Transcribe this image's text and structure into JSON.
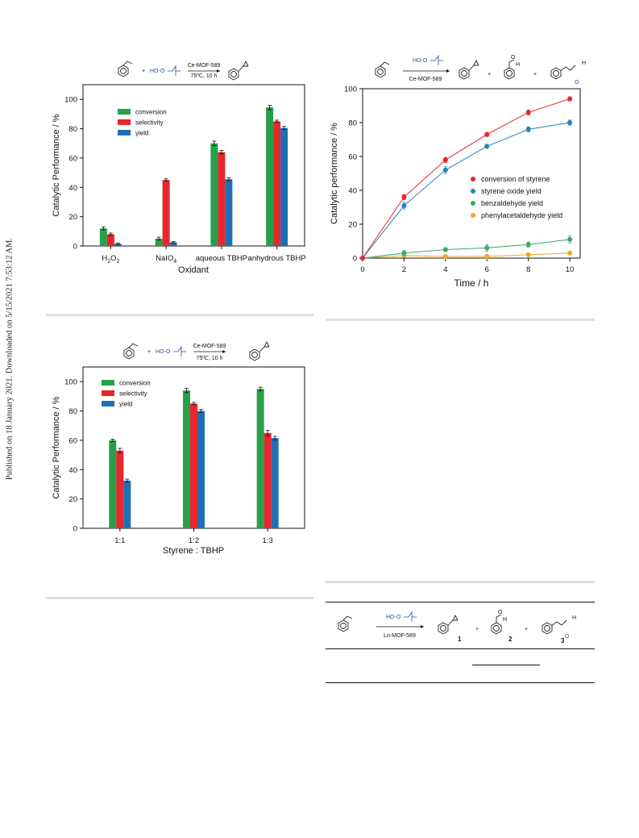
{
  "side_note": "Published on 18 January 2021. Downloaded on 5/15/2021 7:53:12 AM.",
  "scheme_common": {
    "peroxide": "HO-O",
    "plus": "+"
  },
  "colors": {
    "green": "#27a04a",
    "red": "#e8262d",
    "blue": "#1f6fb5",
    "orange": "#f5a623"
  },
  "chart_data": [
    {
      "type": "bar",
      "scheme": {
        "catalyst": "Ce-MOF-589",
        "conditions": "75ºC, 10 h"
      },
      "categories": [
        "H2O2",
        "NaIO4",
        "aqueous TBHP",
        "anhydrous TBHP"
      ],
      "category_labels": [
        {
          "main": "H",
          "sub1": "2",
          "mid": "O",
          "sub2": "2"
        },
        {
          "main": "NaIO",
          "sub1": "4",
          "mid": "",
          "sub2": ""
        },
        {
          "main": "aqueous TBHP",
          "sub1": "",
          "mid": "",
          "sub2": ""
        },
        {
          "main": "anhydrous TBHP",
          "sub1": "",
          "mid": "",
          "sub2": ""
        }
      ],
      "series": [
        {
          "name": "conversion",
          "color": "#27a04a",
          "values": [
            12,
            5,
            70,
            94.5
          ],
          "errors": [
            1,
            1,
            1.5,
            1.5
          ]
        },
        {
          "name": "selectivity",
          "color": "#e8262d",
          "values": [
            8,
            45,
            64,
            85
          ],
          "errors": [
            0.8,
            0.8,
            1.2,
            0.8
          ]
        },
        {
          "name": "yield",
          "color": "#1f6fb5",
          "values": [
            1.5,
            2.5,
            45.5,
            80.5
          ],
          "errors": [
            0.5,
            0.5,
            1,
            1
          ]
        }
      ],
      "xlabel": "Oxidant",
      "ylabel": "Catalytic Performance / %",
      "ylim": [
        0,
        110
      ],
      "yticks": [
        0,
        20,
        40,
        60,
        80,
        100
      ],
      "legend": "top-left",
      "grid": false
    },
    {
      "type": "line",
      "scheme": {
        "catalyst": "Ce-MOF-589",
        "product_h": "H",
        "product_o": "O"
      },
      "x": [
        0,
        2,
        4,
        6,
        8,
        10
      ],
      "series": [
        {
          "name": "conversion of styrene",
          "color": "#e8262d",
          "values": [
            0,
            36,
            58,
            73,
            86,
            94
          ],
          "errors": [
            0,
            1.5,
            1.5,
            1.2,
            1.5,
            1.2
          ]
        },
        {
          "name": "styrene oxide yield",
          "color": "#2b7fc0",
          "values": [
            0,
            31,
            52,
            66,
            76,
            80
          ],
          "errors": [
            0,
            2,
            2,
            1.2,
            1.5,
            1.5
          ]
        },
        {
          "name": "benzaldehyde yield",
          "color": "#3aa86b",
          "values": [
            0,
            3,
            5,
            6,
            8,
            11
          ],
          "errors": [
            0,
            1.5,
            1.2,
            2,
            1.5,
            2
          ]
        },
        {
          "name": "phenylacetaldehyde yield",
          "color": "#f5a623",
          "values": [
            0,
            1.5,
            1,
            1,
            2,
            3
          ],
          "errors": [
            0,
            0.5,
            0.5,
            0.5,
            0.5,
            0.5
          ]
        }
      ],
      "xlabel": "Time / h",
      "ylabel": "Catalytic performance / %",
      "xlim": [
        0,
        10.5
      ],
      "ylim": [
        0,
        100
      ],
      "xticks": [
        0,
        2,
        4,
        6,
        8,
        10
      ],
      "yticks": [
        0,
        20,
        40,
        60,
        80,
        100
      ],
      "legend": "center-right",
      "grid": false
    },
    {
      "type": "bar",
      "scheme": {
        "catalyst": "Ce-MOF-589",
        "conditions": "75ºC, 10 h"
      },
      "categories": [
        "1:1",
        "1:2",
        "1:3"
      ],
      "series": [
        {
          "name": "conversion",
          "color": "#27a04a",
          "values": [
            60,
            94,
            95
          ],
          "errors": [
            0.8,
            1.5,
            1.2
          ]
        },
        {
          "name": "selectivity",
          "color": "#e8262d",
          "values": [
            53,
            85,
            65
          ],
          "errors": [
            1.5,
            0.8,
            1.8
          ]
        },
        {
          "name": "yield",
          "color": "#1f6fb5",
          "values": [
            32.5,
            80,
            61.5
          ],
          "errors": [
            1,
            1,
            1.2
          ]
        }
      ],
      "xlabel": "Styrene : TBHP",
      "ylabel": "Catalytic Performance / %",
      "ylim": [
        0,
        110
      ],
      "yticks": [
        0,
        20,
        40,
        60,
        80,
        100
      ],
      "legend": "top-left",
      "grid": false
    }
  ],
  "table_scheme": {
    "catalyst": "Ln-MOF-589",
    "compound_labels": [
      "1",
      "2",
      "3"
    ],
    "product_h": "H",
    "product_o": "O"
  }
}
